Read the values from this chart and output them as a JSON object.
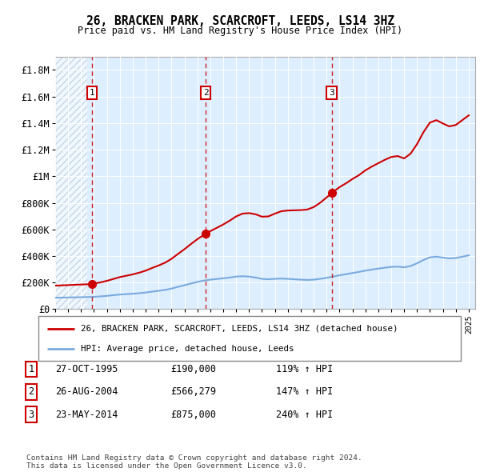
{
  "title": "26, BRACKEN PARK, SCARCROFT, LEEDS, LS14 3HZ",
  "subtitle": "Price paid vs. HM Land Registry's House Price Index (HPI)",
  "ylim": [
    0,
    1900000
  ],
  "yticks": [
    0,
    200000,
    400000,
    600000,
    800000,
    1000000,
    1200000,
    1400000,
    1600000,
    1800000
  ],
  "ytick_labels": [
    "£0",
    "£200K",
    "£400K",
    "£600K",
    "£800K",
    "£1M",
    "£1.2M",
    "£1.4M",
    "£1.6M",
    "£1.8M"
  ],
  "hpi_color": "#7aaadd",
  "price_color": "#cc0000",
  "bg_color": "#ddeeff",
  "sale_dates": [
    1995.83,
    2004.65,
    2014.39
  ],
  "sale_prices": [
    190000,
    566279,
    875000
  ],
  "sale_labels": [
    "1",
    "2",
    "3"
  ],
  "legend_price_label": "26, BRACKEN PARK, SCARCROFT, LEEDS, LS14 3HZ (detached house)",
  "legend_hpi_label": "HPI: Average price, detached house, Leeds",
  "table_rows": [
    [
      "1",
      "27-OCT-1995",
      "£190,000",
      "119% ↑ HPI"
    ],
    [
      "2",
      "26-AUG-2004",
      "£566,279",
      "147% ↑ HPI"
    ],
    [
      "3",
      "23-MAY-2014",
      "£875,000",
      "240% ↑ HPI"
    ]
  ],
  "footnote": "Contains HM Land Registry data © Crown copyright and database right 2024.\nThis data is licensed under the Open Government Licence v3.0.",
  "xmin": 1993,
  "xmax": 2025.5,
  "hatch_end": 1995.5,
  "years_hpi": [
    1993.0,
    1993.5,
    1994.0,
    1994.5,
    1995.0,
    1995.5,
    1996.0,
    1996.5,
    1997.0,
    1997.5,
    1998.0,
    1998.5,
    1999.0,
    1999.5,
    2000.0,
    2000.5,
    2001.0,
    2001.5,
    2002.0,
    2002.5,
    2003.0,
    2003.5,
    2004.0,
    2004.5,
    2005.0,
    2005.5,
    2006.0,
    2006.5,
    2007.0,
    2007.5,
    2008.0,
    2008.5,
    2009.0,
    2009.5,
    2010.0,
    2010.5,
    2011.0,
    2011.5,
    2012.0,
    2012.5,
    2013.0,
    2013.5,
    2014.0,
    2014.5,
    2015.0,
    2015.5,
    2016.0,
    2016.5,
    2017.0,
    2017.5,
    2018.0,
    2018.5,
    2019.0,
    2019.5,
    2020.0,
    2020.5,
    2021.0,
    2021.5,
    2022.0,
    2022.5,
    2023.0,
    2023.5,
    2024.0,
    2024.5,
    2025.0
  ],
  "hpi_values": [
    86000,
    87000,
    88000,
    89000,
    90000,
    91000,
    93000,
    96000,
    100000,
    105000,
    110000,
    113000,
    116000,
    120000,
    125000,
    132000,
    138000,
    145000,
    155000,
    168000,
    180000,
    193000,
    205000,
    215000,
    222000,
    227000,
    232000,
    238000,
    245000,
    248000,
    245000,
    238000,
    228000,
    225000,
    228000,
    230000,
    228000,
    225000,
    222000,
    220000,
    222000,
    228000,
    236000,
    245000,
    255000,
    263000,
    272000,
    280000,
    290000,
    298000,
    305000,
    312000,
    318000,
    320000,
    315000,
    325000,
    345000,
    370000,
    390000,
    395000,
    388000,
    382000,
    385000,
    395000,
    405000
  ]
}
